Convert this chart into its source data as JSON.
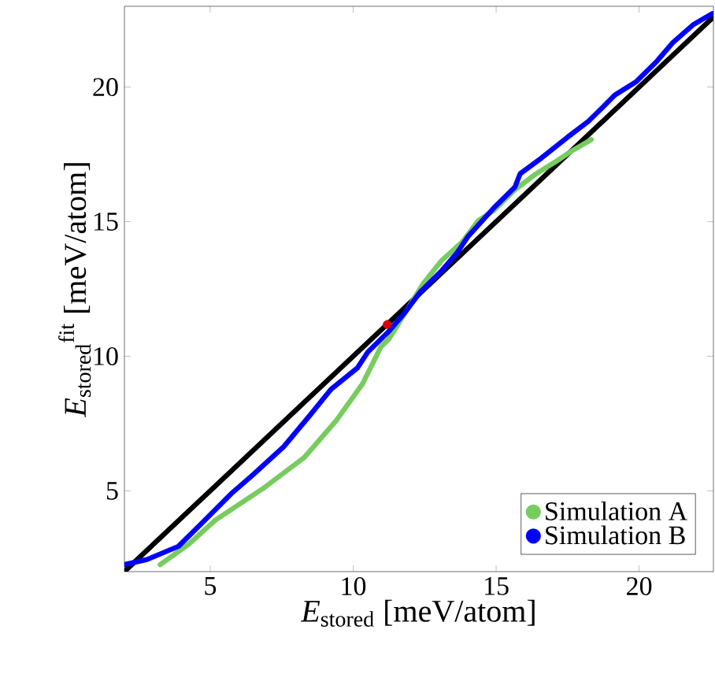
{
  "chart_data": {
    "type": "line",
    "xlabel": "*E*$_{stored}$ [meV/atom]",
    "ylabel": "*E*$_{stored}$$^{fit}$ [meV/atom]",
    "xlim": [
      2,
      22.6
    ],
    "ylim": [
      2,
      23
    ],
    "xticks": [
      5,
      10,
      15,
      20
    ],
    "yticks": [
      5,
      10,
      15,
      20
    ],
    "legend": "bottom right",
    "series": [
      {
        "color": "#000000",
        "line_style": "solid",
        "x": [
          2,
          22.6
        ],
        "values": [
          2,
          22.6
        ]
      },
      {
        "name": "Simulation A",
        "color": "#77cc5f",
        "line_style": "solid",
        "x": [
          3.25,
          4.26,
          5.18,
          6.84,
          8.3,
          9.41,
          10.33,
          10.97,
          11.25,
          12.44,
          13.09,
          13.82,
          14.37,
          14.92,
          15.66,
          16.4,
          17.13,
          17.68,
          18.33
        ],
        "values": [
          2.26,
          3.03,
          3.91,
          5.08,
          6.25,
          7.61,
          8.98,
          10.35,
          10.64,
          12.68,
          13.55,
          14.25,
          15.03,
          15.42,
          16.19,
          16.78,
          17.26,
          17.65,
          18.05
        ]
      },
      {
        "name": "Simulation B",
        "color": "#0000ff",
        "line_style": "solid",
        "x": [
          2.0,
          2.79,
          3.89,
          4.81,
          5.73,
          6.47,
          7.57,
          8.49,
          9.23,
          10.15,
          10.51,
          11.25,
          11.8,
          12.35,
          13.09,
          13.64,
          14.01,
          14.92,
          15.66,
          15.84,
          16.58,
          17.5,
          18.23,
          18.7,
          19.15,
          19.89,
          20.63,
          21.18,
          21.91,
          22.56
        ],
        "values": [
          2.26,
          2.45,
          2.94,
          3.91,
          4.89,
          5.57,
          6.64,
          7.81,
          8.78,
          9.57,
          10.15,
          10.93,
          11.61,
          12.39,
          13.17,
          13.85,
          14.44,
          15.51,
          16.29,
          16.78,
          17.36,
          18.14,
          18.73,
          19.22,
          19.7,
          20.19,
          20.97,
          21.65,
          22.33,
          22.73
        ]
      },
      {
        "type": "scatter",
        "color": "#dd0000",
        "marker": "circle",
        "x": [
          11.19
        ],
        "values": [
          11.18
        ]
      }
    ]
  }
}
